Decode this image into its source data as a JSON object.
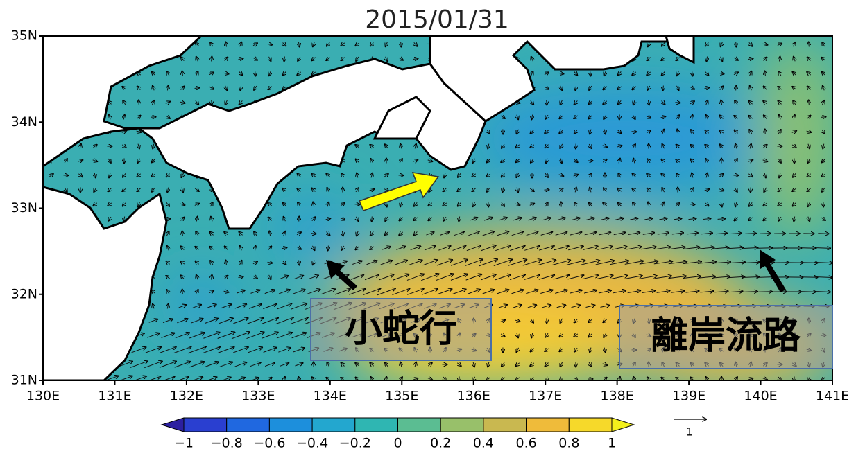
{
  "title": "2015/01/31",
  "latitude_labels": [
    "35N",
    "34N",
    "33N",
    "32N",
    "31N"
  ],
  "longitude_labels": [
    "130E",
    "131E",
    "132E",
    "133E",
    "134E",
    "135E",
    "136E",
    "137E",
    "138E",
    "139E",
    "140E",
    "141E"
  ],
  "colorbar": {
    "labels": [
      "−1",
      "−0.8",
      "−0.6",
      "−0.4",
      "−0.2",
      "0",
      "0.2",
      "0.4",
      "0.6",
      "0.8",
      "1"
    ],
    "colors": [
      "#2c1fa0",
      "#2a3fd0",
      "#2068e0",
      "#1d8fdc",
      "#23a7cf",
      "#2fb6b2",
      "#5bbd92",
      "#98c06a",
      "#c9b850",
      "#efbb3a",
      "#f6d92a",
      "#f4f01c"
    ]
  },
  "reference_vector": "1",
  "annotations": [
    "小蛇行",
    "離岸流路"
  ]
}
